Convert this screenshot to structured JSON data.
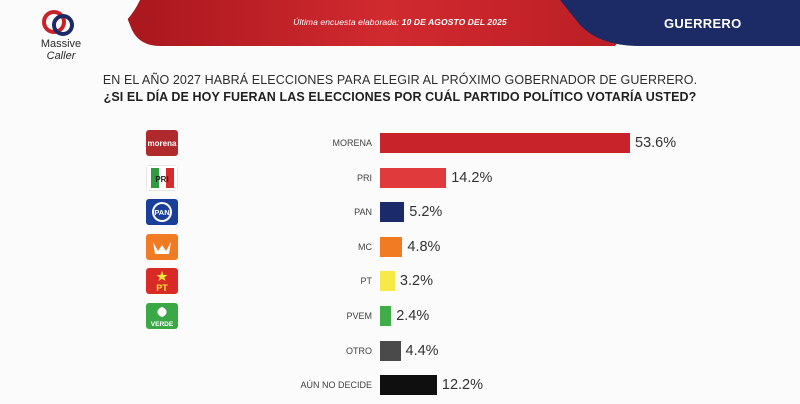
{
  "header": {
    "subtitle_prefix": "Última encuesta elaborada:",
    "subtitle_date": "10 DE AGOSTO DEL 2025",
    "region": "GUERRERO",
    "colors": {
      "red": "#c8232a",
      "navy": "#1c2a66"
    }
  },
  "brand": {
    "name_line1": "Massive",
    "name_line2": "Caller",
    "icon": "massive-caller-logo-icon"
  },
  "question": {
    "line1": "EN EL AÑO 2027 HABRÁ ELECCIONES PARA ELEGIR AL PRÓXIMO GOBERNADOR DE GUERRERO.",
    "line2": "¿SI EL DÍA DE HOY FUERAN LAS ELECCIONES POR CUÁL PARTIDO POLÍTICO VOTARÍA USTED?"
  },
  "chart_data": {
    "type": "bar",
    "orientation": "horizontal",
    "categories": [
      "MORENA",
      "PRI",
      "PAN",
      "MC",
      "PT",
      "PVEM",
      "OTRO",
      "AÚN NO DECIDE"
    ],
    "values": [
      53.6,
      14.2,
      5.2,
      4.8,
      3.2,
      2.4,
      4.4,
      12.2
    ],
    "value_labels": [
      "53.6%",
      "14.2%",
      "5.2%",
      "4.8%",
      "3.2%",
      "2.4%",
      "4.4%",
      "12.2%"
    ],
    "unit": "%",
    "colors": [
      "#c8232a",
      "#e03a3c",
      "#1b2a6b",
      "#f07b22",
      "#f7ea48",
      "#3fae49",
      "#4a4a4a",
      "#0f0f0f"
    ],
    "logos": [
      {
        "icon": "morena-logo-icon",
        "text": "morena"
      },
      {
        "icon": "pri-logo-icon",
        "text": "PRI"
      },
      {
        "icon": "pan-logo-icon",
        "text": "PAN"
      },
      {
        "icon": "mc-logo-icon",
        "text": ""
      },
      {
        "icon": "pt-logo-icon",
        "text": "PT"
      },
      {
        "icon": "pvem-logo-icon",
        "text": "VERDE"
      },
      null,
      null
    ],
    "title": "",
    "xlabel": "",
    "ylabel": ""
  }
}
